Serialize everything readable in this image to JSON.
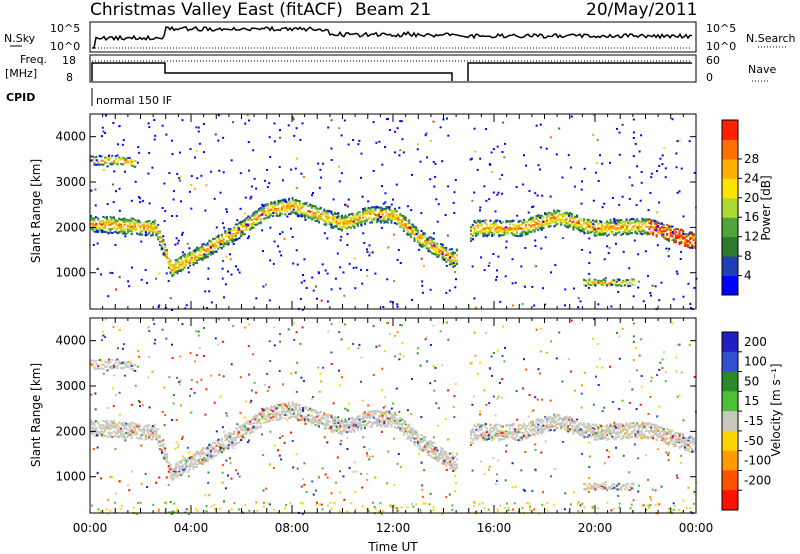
{
  "header": {
    "title": "Christmas Valley East (fitACF)",
    "beam": "Beam 21",
    "date": "20/May/2011"
  },
  "panels": {
    "nsky_label": "N.Sky",
    "nsky_ticks": [
      "10^5",
      "10^0"
    ],
    "nsearch_label": "N.Search",
    "freq_label": "Freq.",
    "freq_unit": "[MHz]",
    "freq_ticks": [
      "18",
      "8"
    ],
    "nave_label": "Nave",
    "nave_ticks": [
      "60",
      "0"
    ],
    "cpid_label": "CPID",
    "cpid_value": "normal 150 IF"
  },
  "chart_data": [
    {
      "type": "heatmap",
      "name": "Power",
      "xlabel": "",
      "ylabel": "Slant Range [km]",
      "x_ticks": [],
      "y_ticks": [
        "1000",
        "2000",
        "3000",
        "4000"
      ],
      "xlim_hours": [
        0,
        24
      ],
      "ylim_km": [
        200,
        4500
      ],
      "data_gap_hours": [
        14.5,
        15.0
      ],
      "colorbar_label": "Power [dB]",
      "colorbar_ticks": [
        "4",
        "8",
        "12",
        "16",
        "20",
        "24",
        "28"
      ],
      "colorbar_colors": [
        "#0000ff",
        "#1f3fb4",
        "#2b7a2b",
        "#4fa53a",
        "#aedc2e",
        "#ffe400",
        "#ffb000",
        "#ff7000",
        "#ff2000"
      ],
      "echo_bands": [
        {
          "range_km": [
            [
              0,
              2100
            ],
            [
              1.5,
              2050
            ],
            [
              2.6,
              2000
            ],
            [
              3.2,
              1100
            ],
            [
              4.5,
              1500
            ],
            [
              6,
              2000
            ],
            [
              7,
              2400
            ],
            [
              8,
              2500
            ],
            [
              9,
              2300
            ],
            [
              10,
              2100
            ],
            [
              11,
              2300
            ],
            [
              12,
              2300
            ],
            [
              13,
              1800
            ],
            [
              14.4,
              1300
            ],
            [
              15.2,
              2000
            ],
            [
              17,
              2000
            ],
            [
              18.5,
              2250
            ],
            [
              20,
              2000
            ],
            [
              22,
              2050
            ],
            [
              24,
              1700
            ]
          ],
          "width_km": 350
        },
        {
          "range_km": [
            [
              0,
              3500
            ],
            [
              1,
              3500
            ],
            [
              1.8,
              3450
            ]
          ],
          "width_km": 200
        },
        {
          "range_km": [
            [
              19.5,
              800
            ],
            [
              21.5,
              800
            ]
          ],
          "width_km": 150
        }
      ]
    },
    {
      "type": "heatmap",
      "name": "Velocity",
      "xlabel": "Time UT",
      "ylabel": "Slant Range [km]",
      "x_ticks": [
        "00:00",
        "04:00",
        "08:00",
        "12:00",
        "16:00",
        "20:00",
        "00:00"
      ],
      "y_ticks": [
        "1000",
        "2000",
        "3000",
        "4000"
      ],
      "xlim_hours": [
        0,
        24
      ],
      "ylim_km": [
        200,
        4500
      ],
      "colorbar_label": "Velocity [m s⁻¹]",
      "colorbar_ticks": [
        "200",
        "100",
        "50",
        "15",
        "-15",
        "-50",
        "-100",
        "-200"
      ],
      "colorbar_colors": [
        "#2020c0",
        "#3050d0",
        "#2a8a2a",
        "#4fc03a",
        "#c8c8c0",
        "#ffd400",
        "#ff9a00",
        "#ff5000",
        "#ff1000"
      ]
    }
  ]
}
